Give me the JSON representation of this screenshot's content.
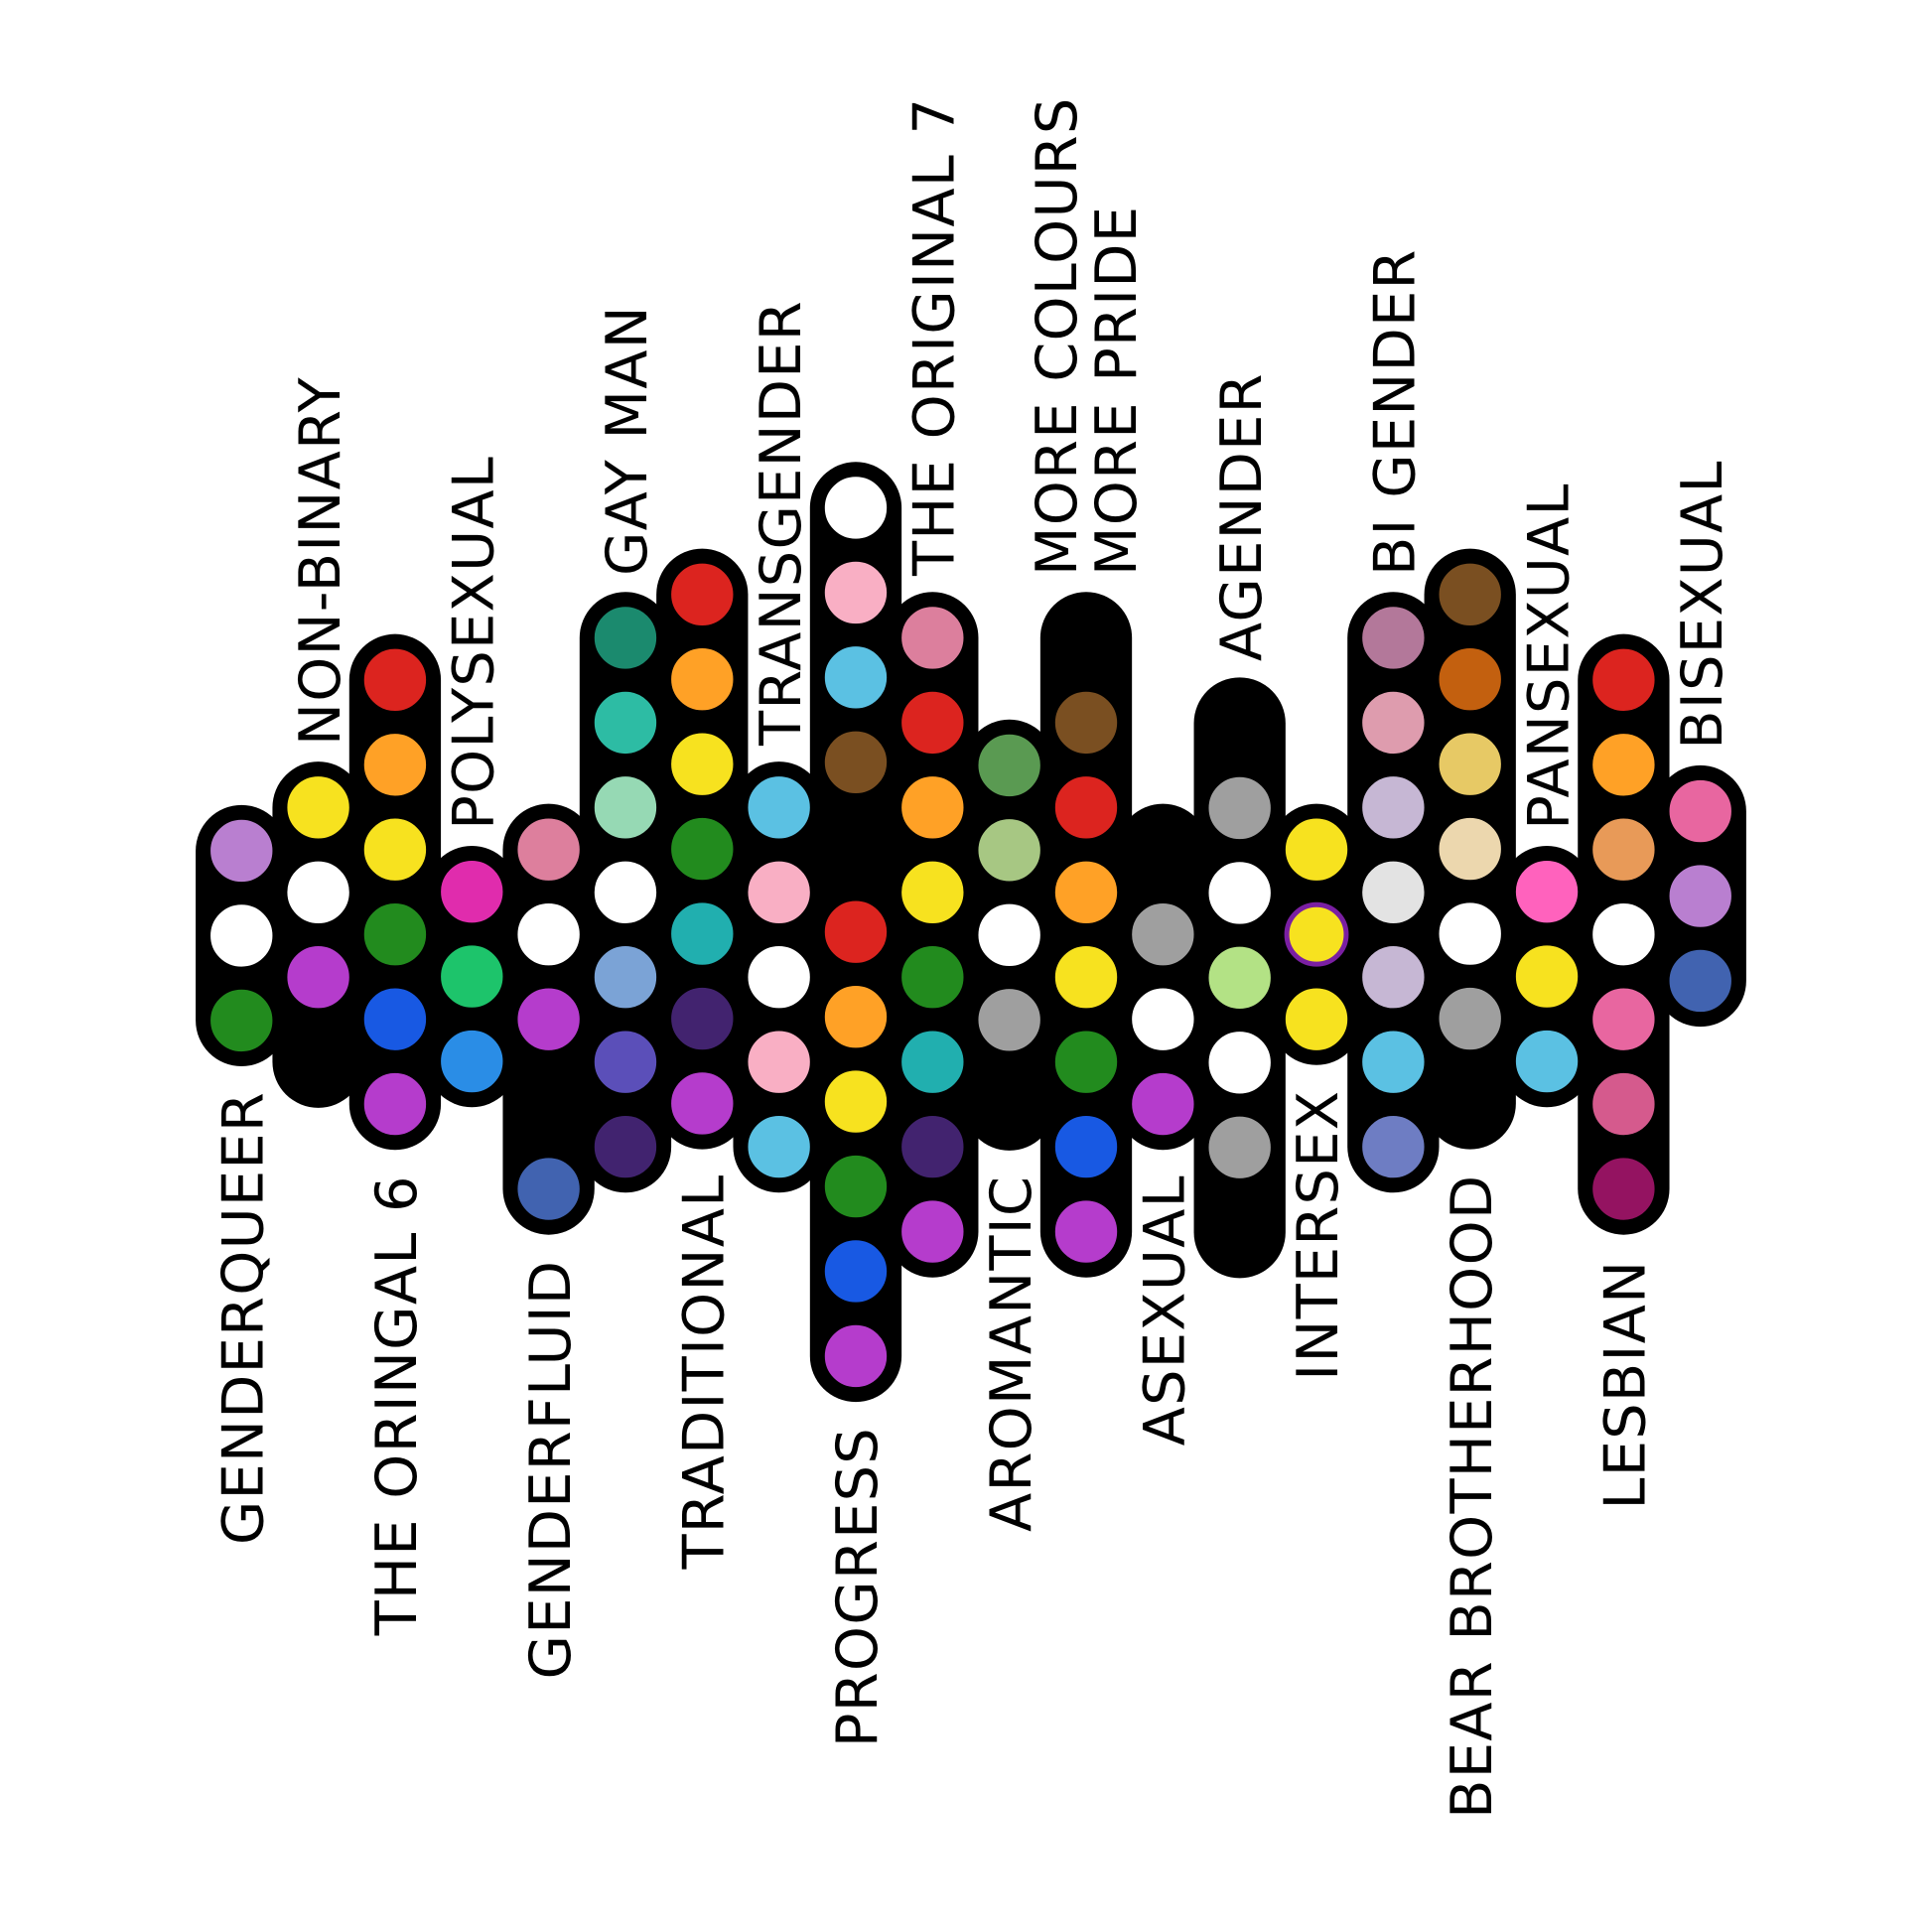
{
  "flags": [
    {
      "label": "GENDERQUEER",
      "label_side": "below",
      "colors": [
        "#b97fd0",
        "#ffffff",
        "#228b1e"
      ]
    },
    {
      "label": "NON-BINARY",
      "label_side": "above",
      "colors": [
        "#f7e21f",
        "#ffffff",
        "#b53ccc",
        "#000000"
      ]
    },
    {
      "label": "THE ORINGAL 6",
      "label_side": "below",
      "colors": [
        "#dc241f",
        "#ffa126",
        "#f7e21f",
        "#228b1e",
        "#1859e3",
        "#b53ccc"
      ]
    },
    {
      "label": "POLYSEXUAL",
      "label_side": "above",
      "colors": [
        "#e02cad",
        "#1dc46b",
        "#2a8de6"
      ]
    },
    {
      "label": "GENDERFLUID",
      "label_side": "below",
      "colors": [
        "#dd7f9d",
        "#ffffff",
        "#b53ccc",
        "#000000",
        "#4163b0"
      ]
    },
    {
      "label": "GAY MAN",
      "label_side": "above",
      "colors": [
        "#1b8a6e",
        "#2dbca4",
        "#96d9b4",
        "#ffffff",
        "#7ba3d6",
        "#5b4fb9",
        "#41236f"
      ]
    },
    {
      "label": "TRADITIONAL",
      "label_side": "below",
      "colors": [
        "#dc241f",
        "#ffa126",
        "#f7e21f",
        "#228b1e",
        "#21afaf",
        "#42236f",
        "#b53ccc"
      ]
    },
    {
      "label": "TRANSGENDER",
      "label_side": "above",
      "colors": [
        "#5bc1e3",
        "#f9afc4",
        "#ffffff",
        "#f9afc4",
        "#5bc1e3"
      ]
    },
    {
      "label": "PROGRESS",
      "label_side": "below",
      "colors": [
        "#ffffff",
        "#f9afc4",
        "#5bc1e3",
        "#7a4f21",
        "#000000",
        "#dc241f",
        "#ffa126",
        "#f7e21f",
        "#228b1e",
        "#1859e3",
        "#b53ccc"
      ]
    },
    {
      "label": "THE ORIGINAL 7",
      "label_side": "above",
      "colors": [
        "#dc7f9d",
        "#dc241f",
        "#ffa126",
        "#f7e21f",
        "#228b1e",
        "#21afaf",
        "#42236f",
        "#b53ccc"
      ]
    },
    {
      "label": "AROMANTIC",
      "label_side": "below",
      "colors": [
        "#5a9a52",
        "#a7c783",
        "#ffffff",
        "#9f9f9f",
        "#000000"
      ]
    },
    {
      "label": "MORE COLOURS",
      "label2": "MORE PRIDE",
      "label_side": "above",
      "colors": [
        "#000000",
        "#7a4f21",
        "#dc241f",
        "#ffa126",
        "#f7e21f",
        "#228b1e",
        "#1859e3",
        "#b53ccc"
      ]
    },
    {
      "label": "ASEXUAL",
      "label_side": "below",
      "colors": [
        "#000000",
        "#9f9f9f",
        "#ffffff",
        "#b53ccc"
      ]
    },
    {
      "label": "AGENDER",
      "label_side": "above",
      "colors": [
        "#000000",
        "#9f9f9f",
        "#ffffff",
        "#b3e285",
        "#ffffff",
        "#9f9f9f",
        "#000000"
      ]
    },
    {
      "label": "INTERSEX",
      "label_side": "below",
      "colors": [
        "#f7e21f",
        "#f7e21f",
        "#f7e21f"
      ],
      "ring_color": "#7a1fa2"
    },
    {
      "label": "BI GENDER",
      "label_side": "above",
      "colors": [
        "#b3789a",
        "#de9cae",
        "#c6b7d4",
        "#e3e3e3",
        "#c6b7d4",
        "#5bc1e3",
        "#6e7dc3"
      ]
    },
    {
      "label": "BEAR BROTHERHOOD",
      "label_side": "below",
      "colors": [
        "#7a4f21",
        "#c3600f",
        "#e7c965",
        "#ecd7ae",
        "#ffffff",
        "#9f9f9f",
        "#000000"
      ]
    },
    {
      "label": "PANSEXUAL",
      "label_side": "above",
      "colors": [
        "#ff62bd",
        "#f7e21f",
        "#5bc1e3"
      ]
    },
    {
      "label": "LESBIAN",
      "label_side": "below",
      "colors": [
        "#dc241f",
        "#ffa126",
        "#e89a58",
        "#ffffff",
        "#e866a0",
        "#d55a8d",
        "#941361"
      ]
    },
    {
      "label": "BISEXUAL",
      "label_side": "above",
      "colors": [
        "#e866a0",
        "#b97fd0",
        "#4163b0"
      ]
    }
  ]
}
